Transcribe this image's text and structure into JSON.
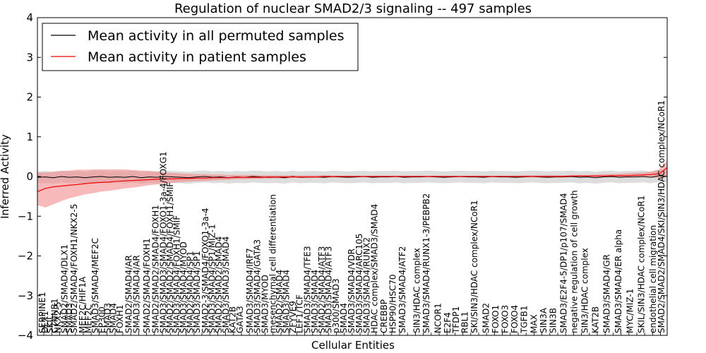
{
  "chart_data": {
    "type": "line",
    "title": "Regulation of nuclear SMAD2/3 signaling -- 497 samples",
    "xlabel": "Cellular Entities",
    "ylabel": "Inferred Activity",
    "ylim": [
      -4,
      4
    ],
    "yticks": [
      "−4",
      "−3",
      "−2",
      "−1",
      "0",
      "1",
      "2",
      "3",
      "4"
    ],
    "ytick_values": [
      -4,
      -3,
      -2,
      -1,
      0,
      1,
      2,
      3,
      4
    ],
    "legend_position": "top-left",
    "colors": {
      "permuted": "#000000",
      "permuted_band": "#bbbbbb",
      "patient": "#ee0000",
      "patient_band": "#f08080"
    },
    "n_points": 80,
    "series": [
      {
        "name": "Mean activity in all permuted samples",
        "key": "permuted",
        "values": [
          -0.02,
          -0.01,
          -0.03,
          0.0,
          -0.02,
          -0.01,
          -0.03,
          -0.01,
          0.0,
          -0.02,
          -0.01,
          -0.02,
          0.0,
          -0.03,
          -0.01,
          -0.02,
          0.0,
          -0.01,
          -0.02,
          -0.03,
          -0.01,
          0.0,
          -0.02,
          -0.01,
          -0.03,
          -0.01,
          -0.02,
          0.0,
          -0.01,
          -0.02,
          -0.01,
          -0.03,
          0.0,
          -0.02,
          -0.01,
          -0.01,
          -0.02,
          0.0,
          -0.01,
          -0.02,
          -0.01,
          0.0,
          -0.02,
          -0.01,
          -0.01,
          0.0,
          -0.02,
          -0.01,
          -0.01,
          0.0,
          -0.01,
          -0.02,
          -0.01,
          0.0,
          -0.01,
          -0.01,
          -0.02,
          0.0,
          -0.01,
          -0.01,
          -0.02,
          -0.01,
          0.0,
          -0.01,
          -0.02,
          -0.01,
          -0.01,
          0.0,
          -0.02,
          -0.01,
          -0.03,
          -0.01,
          0.0,
          -0.02,
          -0.01,
          -0.01,
          0.0,
          -0.02,
          0.02,
          0.0
        ],
        "band": 0.15
      },
      {
        "name": "Mean activity in patient samples",
        "key": "patient",
        "values": [
          -0.38,
          -0.3,
          -0.26,
          -0.24,
          -0.22,
          -0.2,
          -0.18,
          -0.16,
          -0.15,
          -0.14,
          -0.12,
          -0.11,
          -0.1,
          -0.09,
          -0.08,
          -0.07,
          -0.06,
          -0.06,
          -0.05,
          -0.05,
          -0.04,
          -0.04,
          -0.03,
          -0.03,
          -0.03,
          -0.02,
          -0.02,
          -0.02,
          -0.02,
          -0.01,
          -0.01,
          -0.01,
          -0.01,
          -0.01,
          -0.01,
          -0.01,
          0.0,
          0.0,
          0.0,
          0.0,
          0.0,
          0.0,
          0.0,
          0.0,
          0.0,
          0.0,
          0.0,
          0.0,
          0.0,
          0.0,
          0.0,
          0.0,
          0.0,
          0.0,
          0.0,
          0.0,
          0.0,
          0.0,
          0.0,
          0.0,
          0.0,
          0.0,
          0.0,
          0.0,
          0.0,
          0.0,
          0.0,
          0.01,
          0.01,
          0.01,
          0.01,
          0.01,
          0.02,
          0.02,
          0.02,
          0.03,
          0.04,
          0.05,
          0.07,
          0.22
        ],
        "band_upper": [
          0.1,
          0.1,
          0.12,
          0.14,
          0.15,
          0.17,
          0.17,
          0.18,
          0.18,
          0.18,
          0.18,
          0.18,
          0.16,
          0.15,
          0.14,
          0.12,
          0.1,
          0.09,
          0.08,
          0.07,
          0.06,
          0.06,
          0.05,
          0.05,
          0.04,
          0.04,
          0.04,
          0.04,
          0.03,
          0.03,
          0.03,
          0.03,
          0.03,
          0.03,
          0.03,
          0.03,
          0.03,
          0.02,
          0.02,
          0.02,
          0.02,
          0.02,
          0.02,
          0.02,
          0.02,
          0.02,
          0.02,
          0.02,
          0.02,
          0.02,
          0.02,
          0.02,
          0.02,
          0.02,
          0.02,
          0.02,
          0.02,
          0.02,
          0.02,
          0.02,
          0.02,
          0.03,
          0.03,
          0.03,
          0.03,
          0.03,
          0.03,
          0.04,
          0.04,
          0.04,
          0.05,
          0.06,
          0.06,
          0.07,
          0.08,
          0.09,
          0.1,
          0.12,
          0.18,
          0.4
        ],
        "band_lower": [
          -0.72,
          -0.78,
          -0.7,
          -0.62,
          -0.55,
          -0.5,
          -0.45,
          -0.42,
          -0.38,
          -0.36,
          -0.33,
          -0.3,
          -0.28,
          -0.25,
          -0.22,
          -0.2,
          -0.18,
          -0.16,
          -0.14,
          -0.13,
          -0.12,
          -0.11,
          -0.1,
          -0.09,
          -0.08,
          -0.07,
          -0.07,
          -0.06,
          -0.06,
          -0.05,
          -0.05,
          -0.05,
          -0.04,
          -0.04,
          -0.04,
          -0.03,
          -0.03,
          -0.03,
          -0.03,
          -0.02,
          -0.02,
          -0.02,
          -0.02,
          -0.02,
          -0.02,
          -0.02,
          -0.02,
          -0.02,
          -0.02,
          -0.02,
          -0.02,
          -0.02,
          -0.02,
          -0.02,
          -0.02,
          -0.02,
          -0.02,
          -0.02,
          -0.02,
          -0.02,
          -0.02,
          -0.02,
          -0.02,
          -0.02,
          -0.02,
          -0.02,
          -0.02,
          -0.02,
          -0.02,
          -0.02,
          -0.02,
          -0.02,
          -0.02,
          -0.02,
          -0.02,
          -0.02,
          -0.02,
          -0.02,
          -0.04,
          0.02
        ]
      }
    ],
    "entity_labels": [
      {
        "text": "SERPINE1",
        "pos": 0.0
      },
      {
        "text": "DLX1",
        "pos": 0.3
      },
      {
        "text": "SKIL",
        "pos": 0.8
      },
      {
        "text": "CTNNB1",
        "pos": 1.3
      },
      {
        "text": "NKX2-5",
        "pos": 1.6
      },
      {
        "text": "SMAD2/SMAD4/DLX1",
        "pos": 2.3
      },
      {
        "text": "SMAD3",
        "pos": 2.8
      },
      {
        "text": "SMAD2/SMAD4/FOXH1/NKX2-5",
        "pos": 3.3
      },
      {
        "text": "MEF2C/HIF1A",
        "pos": 4.2
      },
      {
        "text": "MEF2C",
        "pos": 4.8
      },
      {
        "text": "SMAD3/SMAD4/MEF2C",
        "pos": 5.5
      },
      {
        "text": "EP300",
        "pos": 6.2
      },
      {
        "text": "SMAD3",
        "pos": 6.8
      },
      {
        "text": "SMAD4",
        "pos": 7.4
      },
      {
        "text": "FOXH1",
        "pos": 8.1
      },
      {
        "text": "SMAD2/SMAD4/AR",
        "pos": 9.0
      },
      {
        "text": "SMAD3/SMAD4/AR",
        "pos": 9.8
      },
      {
        "text": "SMAD2/SMAD4/FOXH1",
        "pos": 10.9
      },
      {
        "text": "SMAD2/SMAD2/SMAD4/FOXH1",
        "pos": 11.8
      },
      {
        "text": "SMAD3/SMAD3/SMAD4/FOXO1-3a-4/FOXG1",
        "pos": 12.6
      },
      {
        "text": "SMAD2/SMAD2/SMAD4/FOXH1/SMIF",
        "pos": 13.3
      },
      {
        "text": "SMAD3/SMAD4/FOXH1/SMIF",
        "pos": 14.0
      },
      {
        "text": "SMAD3/SMAD4/MYOD",
        "pos": 14.7
      },
      {
        "text": "SMAD2/SMAD4/SP1",
        "pos": 15.4
      },
      {
        "text": "SMAD3/SMAD4/SP1",
        "pos": 16.1
      },
      {
        "text": "SMAD2-3/SMAD4/FOXO1-3a-4",
        "pos": 17.0
      },
      {
        "text": "SMAD3/SMAD4/SP1/MIZ-1",
        "pos": 17.7
      },
      {
        "text": "SMAD2/SMAD2/SMAD4",
        "pos": 18.4
      },
      {
        "text": "SMAD3/SMAD3/SMAD4",
        "pos": 19.1
      },
      {
        "text": "KAT2B",
        "pos": 19.8
      },
      {
        "text": "GATA3",
        "pos": 20.6
      },
      {
        "text": "SMAD3/SMAD4/IRF7",
        "pos": 21.6
      },
      {
        "text": "SMAD3/SMAD4/GATA3",
        "pos": 22.4
      },
      {
        "text": "SMAD3/MYOD",
        "pos": 23.2
      },
      {
        "text": "mesenchymal cell differentiation",
        "pos": 24.0
      },
      {
        "text": "SMAD2/SMAD4",
        "pos": 24.7
      },
      {
        "text": "SMAD3/SMAD4",
        "pos": 25.4
      },
      {
        "text": "ZFYVE9",
        "pos": 26.1
      },
      {
        "text": "LEF1/TCF",
        "pos": 26.8
      },
      {
        "text": "SMAD3/SMAD4/TFE3",
        "pos": 27.6
      },
      {
        "text": "SMAD3/SMAD4",
        "pos": 28.4
      },
      {
        "text": "SMAD2/SMAD4/ATF3",
        "pos": 29.1
      },
      {
        "text": "SMAD3/SMAD4/ATF3",
        "pos": 29.8
      },
      {
        "text": "p300/SMAD3",
        "pos": 30.6
      },
      {
        "text": "SMAD4",
        "pos": 31.4
      },
      {
        "text": "SMAD3/SMAD4/VDR",
        "pos": 32.2
      },
      {
        "text": "SMAD3/SMAD4/ARC105",
        "pos": 33.0
      },
      {
        "text": "SMAD3/SMAD4/RUNX2",
        "pos": 33.8
      },
      {
        "text": "HDAC complex/SMAD3/SMAD4",
        "pos": 34.6
      },
      {
        "text": "CREBBP",
        "pos": 35.6
      },
      {
        "text": "HSP90/HSC70",
        "pos": 36.5
      },
      {
        "text": "SMAD3/SMAD4/ATF2",
        "pos": 37.5
      },
      {
        "text": "SIN3/HDAC complex",
        "pos": 39.0
      },
      {
        "text": "SMAD3/SMAD4/RUNX1-3/PEBPB2",
        "pos": 40.0
      },
      {
        "text": "NCOR1",
        "pos": 41.2
      },
      {
        "text": "E2F4",
        "pos": 42.2
      },
      {
        "text": "TFDP1",
        "pos": 43.1
      },
      {
        "text": "RBL1",
        "pos": 44.0
      },
      {
        "text": "SKI/SIN3/HDAC complex/NCoR1",
        "pos": 45.0
      },
      {
        "text": "SMAD2",
        "pos": 46.2
      },
      {
        "text": "FOXO1",
        "pos": 47.2
      },
      {
        "text": "FOXO3",
        "pos": 48.2
      },
      {
        "text": "FOXO4",
        "pos": 49.2
      },
      {
        "text": "TGFB1",
        "pos": 50.2
      },
      {
        "text": "MAX",
        "pos": 51.2
      },
      {
        "text": "SIN3A",
        "pos": 52.2
      },
      {
        "text": "SIN3B",
        "pos": 53.2
      },
      {
        "text": "SMAD3/E2F4-5/DP1/p107/SMAD4",
        "pos": 54.3
      },
      {
        "text": "negative regulation of cell growth",
        "pos": 55.4
      },
      {
        "text": "SIN3/HDAC complex",
        "pos": 56.5
      },
      {
        "text": "KAT2B",
        "pos": 57.6
      },
      {
        "text": "SMAD3/SMAD4/GR",
        "pos": 58.8
      },
      {
        "text": "SMAD3/SMAD4/ER alpha",
        "pos": 60.0
      },
      {
        "text": "MYC/MIZ-1",
        "pos": 61.2
      },
      {
        "text": "SKIL/SIN3/HDAC complex/NCoR1",
        "pos": 62.4
      },
      {
        "text": "endothelial cell migration",
        "pos": 63.6
      },
      {
        "text": "SMAD2/SMAD2/SMAD4/SKI/SIN3/HDAC complex/NCoR1",
        "pos": 64.5
      }
    ],
    "legend": [
      {
        "label": "Mean activity in all permuted samples",
        "key": "permuted"
      },
      {
        "label": "Mean activity in patient samples",
        "key": "patient"
      }
    ]
  }
}
